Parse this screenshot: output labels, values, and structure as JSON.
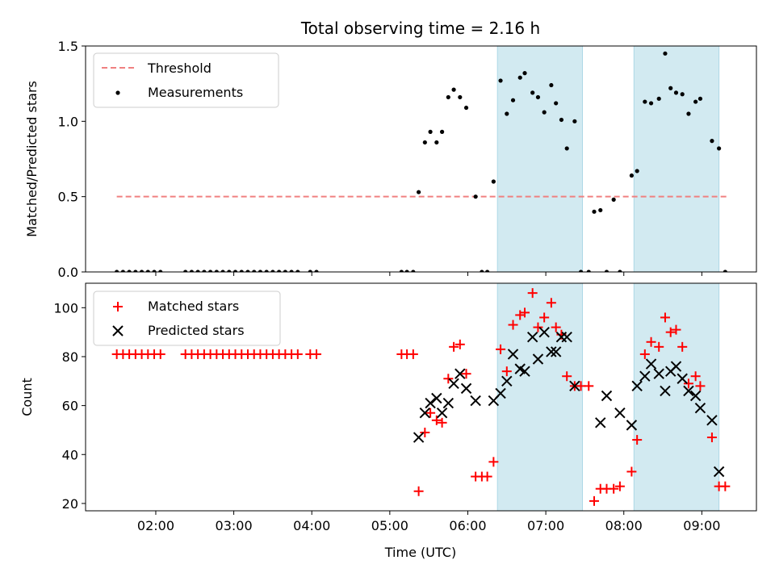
{
  "chart_data": [
    {
      "type": "scatter",
      "title": "Total observing time = 2.16 h",
      "xlabel": "",
      "ylabel": "Matched/Predicted stars",
      "ylim": [
        0,
        1.5
      ],
      "yticks": [
        "0.0",
        "0.5",
        "1.0",
        "1.5"
      ],
      "xticks": [
        "02:00",
        "03:00",
        "04:00",
        "05:00",
        "06:00",
        "07:00",
        "08:00",
        "09:00"
      ],
      "xlim_hours": [
        1.1,
        9.7
      ],
      "shaded_intervals_hours": [
        [
          6.38,
          7.47
        ],
        [
          8.13,
          9.22
        ]
      ],
      "shade_color": "#add8e6",
      "legend": {
        "placement": "top-left",
        "entries": [
          "Threshold",
          "Measurements"
        ]
      },
      "threshold": {
        "name": "Threshold",
        "value": 0.5,
        "x_range_hours": [
          1.5,
          9.35
        ],
        "color": "#f08080",
        "style": "dashed"
      },
      "series": [
        {
          "name": "Measurements",
          "color": "#000000",
          "marker": "dot",
          "x": [
            1.5,
            1.58,
            1.66,
            1.74,
            1.82,
            1.9,
            1.98,
            2.06,
            2.38,
            2.46,
            2.54,
            2.62,
            2.7,
            2.78,
            2.86,
            2.94,
            3.02,
            3.1,
            3.18,
            3.26,
            3.34,
            3.42,
            3.5,
            3.58,
            3.66,
            3.74,
            3.82,
            3.98,
            4.06,
            5.15,
            5.22,
            5.3,
            5.37,
            5.45,
            5.52,
            5.6,
            5.67,
            5.75,
            5.82,
            5.9,
            5.98,
            6.1,
            6.18,
            6.25,
            6.33,
            6.42,
            6.5,
            6.58,
            6.67,
            6.73,
            6.83,
            6.9,
            6.98,
            7.07,
            7.13,
            7.2,
            7.27,
            7.37,
            7.45,
            7.55,
            7.62,
            7.7,
            7.78,
            7.87,
            7.95,
            8.1,
            8.17,
            8.27,
            8.35,
            8.45,
            8.53,
            8.6,
            8.67,
            8.75,
            8.83,
            8.92,
            8.98,
            9.13,
            9.22,
            9.3
          ],
          "y": [
            0,
            0,
            0,
            0,
            0,
            0,
            0,
            0,
            0,
            0,
            0,
            0,
            0,
            0,
            0,
            0,
            0,
            0,
            0,
            0,
            0,
            0,
            0,
            0,
            0,
            0,
            0,
            0,
            0,
            0,
            0,
            0,
            0.53,
            0.86,
            0.93,
            0.86,
            0.93,
            1.16,
            1.21,
            1.16,
            1.09,
            0.5,
            0,
            0,
            0.6,
            1.27,
            1.05,
            1.14,
            1.29,
            1.32,
            1.19,
            1.16,
            1.06,
            1.24,
            1.12,
            1.01,
            0.82,
            1.0,
            0,
            0,
            0.4,
            0.41,
            0,
            0.48,
            0,
            0.64,
            0.67,
            1.13,
            1.12,
            1.15,
            1.45,
            1.22,
            1.19,
            1.18,
            1.05,
            1.13,
            1.15,
            0.87,
            0.82,
            0
          ]
        }
      ]
    },
    {
      "type": "scatter",
      "title": "",
      "xlabel": "Time (UTC)",
      "ylabel": "Count",
      "ylim": [
        17,
        110
      ],
      "yticks": [
        "20",
        "40",
        "60",
        "80",
        "100"
      ],
      "xticks": [
        "02:00",
        "03:00",
        "04:00",
        "05:00",
        "06:00",
        "07:00",
        "08:00",
        "09:00"
      ],
      "xlim_hours": [
        1.1,
        9.7
      ],
      "shaded_intervals_hours": [
        [
          6.38,
          7.47
        ],
        [
          8.13,
          9.22
        ]
      ],
      "shade_color": "#add8e6",
      "legend": {
        "placement": "top-left",
        "entries": [
          "Matched stars",
          "Predicted stars"
        ]
      },
      "series": [
        {
          "name": "Matched stars",
          "color": "#ff0000",
          "marker": "plus",
          "x": [
            1.5,
            1.58,
            1.66,
            1.74,
            1.82,
            1.9,
            1.98,
            2.06,
            2.38,
            2.46,
            2.54,
            2.62,
            2.7,
            2.78,
            2.86,
            2.94,
            3.02,
            3.1,
            3.18,
            3.26,
            3.34,
            3.42,
            3.5,
            3.58,
            3.66,
            3.74,
            3.82,
            3.98,
            4.06,
            5.15,
            5.22,
            5.3,
            5.37,
            5.45,
            5.52,
            5.6,
            5.67,
            5.75,
            5.82,
            5.9,
            5.98,
            6.1,
            6.18,
            6.25,
            6.33,
            6.42,
            6.5,
            6.58,
            6.67,
            6.73,
            6.83,
            6.9,
            6.98,
            7.07,
            7.13,
            7.2,
            7.27,
            7.37,
            7.45,
            7.55,
            7.62,
            7.7,
            7.78,
            7.87,
            7.95,
            8.1,
            8.17,
            8.27,
            8.35,
            8.45,
            8.53,
            8.6,
            8.67,
            8.75,
            8.83,
            8.92,
            8.98,
            9.13,
            9.22,
            9.3
          ],
          "y": [
            81,
            81,
            81,
            81,
            81,
            81,
            81,
            81,
            81,
            81,
            81,
            81,
            81,
            81,
            81,
            81,
            81,
            81,
            81,
            81,
            81,
            81,
            81,
            81,
            81,
            81,
            81,
            81,
            81,
            81,
            81,
            81,
            25,
            49,
            57,
            54,
            53,
            71,
            84,
            85,
            73,
            31,
            31,
            31,
            37,
            83,
            74,
            93,
            97,
            98,
            106,
            92,
            96,
            102,
            92,
            89,
            72,
            68,
            68,
            68,
            21,
            26,
            26,
            26,
            27,
            33,
            46,
            81,
            86,
            84,
            96,
            90,
            91,
            84,
            69,
            72,
            68,
            47,
            27,
            27
          ]
        },
        {
          "name": "Predicted stars",
          "color": "#000000",
          "marker": "x",
          "x": [
            5.37,
            5.45,
            5.52,
            5.6,
            5.67,
            5.75,
            5.82,
            5.9,
            5.98,
            6.1,
            6.33,
            6.42,
            6.5,
            6.58,
            6.67,
            6.73,
            6.83,
            6.9,
            6.98,
            7.07,
            7.13,
            7.2,
            7.27,
            7.37,
            7.7,
            7.78,
            7.95,
            8.1,
            8.17,
            8.27,
            8.35,
            8.45,
            8.53,
            8.6,
            8.67,
            8.75,
            8.83,
            8.92,
            8.98,
            9.13,
            9.22
          ],
          "y": [
            47,
            57,
            61,
            63,
            57,
            61,
            69,
            73,
            67,
            62,
            62,
            65,
            70,
            81,
            75,
            74,
            88,
            79,
            90,
            82,
            82,
            88,
            88,
            68,
            53,
            64,
            57,
            52,
            68,
            72,
            77,
            73,
            66,
            74,
            76,
            71,
            66,
            64,
            59,
            54,
            33
          ]
        }
      ]
    }
  ]
}
